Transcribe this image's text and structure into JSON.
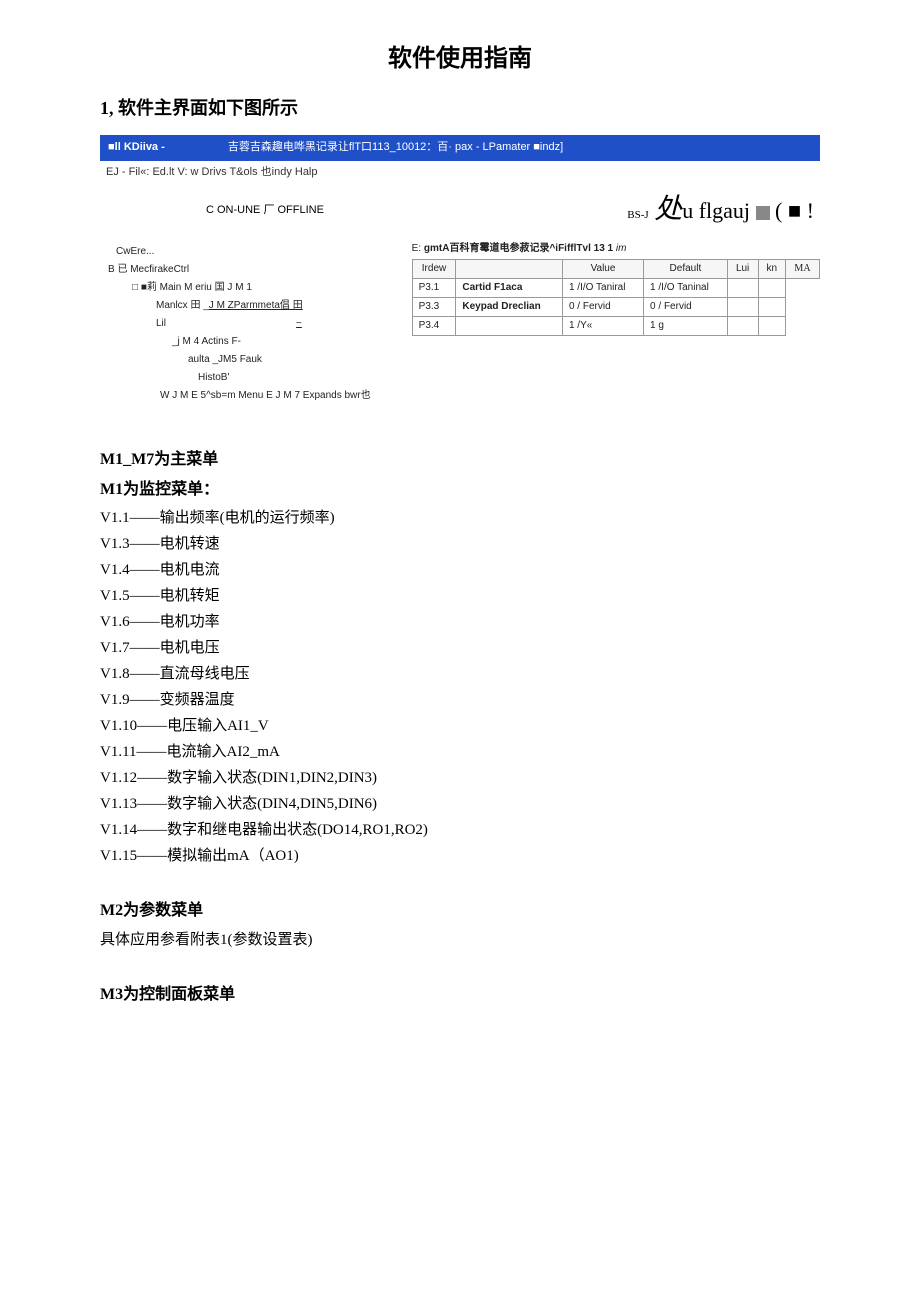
{
  "doc": {
    "title": "软件使用指南",
    "section1": "1, 软件主界面如下图所示"
  },
  "shot": {
    "titlebar": {
      "left": "■ll KDiiva -",
      "mid": "吉蓉吉森趣电哗黑记录让flT口113_10012：百·   pax - LPamater ■indz]"
    },
    "menubar": "EJ - Fil«:   Ed.lt V: w Drivs T&ols 也indy Halp",
    "toolbar": {
      "status": "C ON-UNE 厂  OFFLINE",
      "logo_a": "BS-J",
      "logo_b": "处",
      "logo_c": "u flgauj",
      "sq2": "( ■ !"
    },
    "left": {
      "l1": "CwEre...",
      "l2": "B 已  MecfirakeCtrl",
      "l3_a": "□  ■莉  Main M eriu 国  J M 1",
      "l3_b": "Manlcx 田  _",
      "l3_c": "J M ZParmmeta倡  田",
      "l4": "Lil",
      "l4_tilde": "~",
      "l5": "_j M 4 Actins F-",
      "l6": "aulta  _JM5 Fauk",
      "l7": "HistoB'",
      "l8": "W J M E 5^sb=m Menu E J M 7 Expands bwr也"
    },
    "path_a": "E: ",
    "path_b": "gmtA百科育霉道电参菽记录^iFifflTvl 13 1 ",
    "path_c": "im",
    "headers": [
      "Irdew",
      "",
      "Value",
      "Default",
      "Lui",
      "kn",
      "M"
    ],
    "header_last_suffix": "A",
    "rows": [
      {
        "c": [
          "P3.1",
          "Cartid F1aca",
          "1 /I/O Taniral",
          "1 /I/O Taninal",
          "",
          ""
        ]
      },
      {
        "c": [
          "P3.3",
          "Keypad Dreclian",
          "0 / Fervid",
          "0 / Fervid",
          "",
          ""
        ]
      },
      {
        "c": [
          "P3.4",
          "",
          "1 /Y«",
          "1 g",
          "",
          ""
        ]
      }
    ]
  },
  "body": {
    "h_main": "M1_M7为主菜单",
    "h_m1": "M1为监控菜单：",
    "m1": [
      "V1.1——输出频率(电机的运行频率)",
      "V1.3——电机转速",
      "V1.4——电机电流",
      "V1.5——电机转矩",
      "V1.6——电机功率",
      "V1.7——电机电压",
      "V1.8——直流母线电压",
      "V1.9——变频器温度",
      "V1.10——电压输入AI1_V",
      "V1.11——电流输入AI2_mA",
      "V1.12——数字输入状态(DIN1,DIN2,DIN3)",
      "V1.13——数字输入状态(DIN4,DIN5,DIN6)",
      "V1.14——数字和继电器输出状态(DO14,RO1,RO2)",
      "V1.15——模拟输出mA（AO1)"
    ],
    "h_m2": "M2为参数菜单",
    "m2_line": "具体应用参看附表1(参数设置表)",
    "h_m3": "M3为控制面板菜单"
  }
}
